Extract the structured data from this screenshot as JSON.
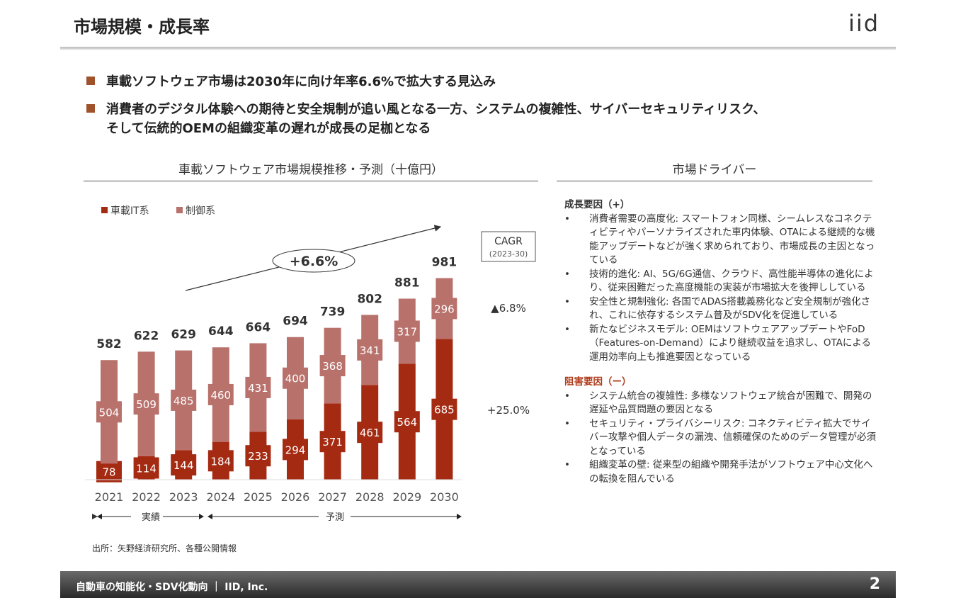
{
  "header": {
    "title": "市場規模・成長率",
    "logo": "iid"
  },
  "bullets": [
    "車載ソフトウェア市場は2030年に向け年率6.6%で拡大する見込み",
    "消費者のデジタル体験への期待と安全規制が追い風となる一方、システムの複雑性、サイバーセキュリティリスク、",
    "そして伝統的OEMの組織変革の遅れが成長の足枷となる"
  ],
  "left_section_title": "車載ソフトウェア市場規模推移・予測（十億円）",
  "right_section_title": "市場ドライバー",
  "chart_data": {
    "type": "bar",
    "stacked": true,
    "title": "車載ソフトウェア市場規模推移・予測（十億円）",
    "categories": [
      "2021",
      "2022",
      "2023",
      "2024",
      "2025",
      "2026",
      "2027",
      "2028",
      "2029",
      "2030"
    ],
    "series": [
      {
        "name": "車載IT系",
        "color": "#a52a12",
        "values": [
          78,
          114,
          144,
          184,
          233,
          294,
          371,
          461,
          564,
          685
        ]
      },
      {
        "name": "制御系",
        "color": "#b8716b",
        "values": [
          504,
          509,
          485,
          460,
          431,
          400,
          368,
          341,
          317,
          296
        ]
      }
    ],
    "totals": [
      582,
      622,
      629,
      644,
      664,
      694,
      739,
      802,
      881,
      981
    ],
    "legend": "top-left",
    "grid": false,
    "cagr_label": "+6.6%",
    "cagr_box": {
      "title": "CAGR",
      "period": "(2023-30)"
    },
    "segment_cagr": {
      "control": "▲6.8%",
      "it": "+25.0%"
    },
    "period_labels": {
      "actual": "実績",
      "forecast": "予測"
    }
  },
  "source": "出所：矢野経済研究所、各種公開情報",
  "drivers": {
    "growth_title": "成長要因（+）",
    "growth": [
      "消費者需要の高度化: スマートフォン同様、シームレスなコネクティビティやパーソナライズされた車内体験、OTAによる継続的な機能アップデートなどが強く求められており、市場成長の主因となっている",
      "技術的進化: AI、5G/6G通信、クラウド、高性能半導体の進化により、従来困難だった高度機能の実装が市場拡大を後押ししている",
      "安全性と規制強化: 各国でADAS搭載義務化など安全規制が強化され、これに依存するシステム普及がSDV化を促進している",
      "新たなビジネスモデル: OEMはソフトウェアアップデートやFoD（Features-on-Demand）により継続収益を追求し、OTAによる運用効率向上も推進要因となっている"
    ],
    "inhibit_title": "阻害要因（ー）",
    "inhibit": [
      "システム統合の複雑性: 多様なソフトウェア統合が困難で、開発の遅延や品質問題の要因となる",
      "セキュリティ・プライバシーリスク: コネクティビティ拡大でサイバー攻撃や個人データの漏洩、信頼確保のためのデータ管理が必須となっている",
      "組織変革の壁: 従来型の組織や開発手法がソフトウェア中心文化への転換を阻んでいる"
    ]
  },
  "footer": {
    "text": "自動車の知能化・SDV化動向 ｜ IID, Inc.",
    "page": "2"
  }
}
